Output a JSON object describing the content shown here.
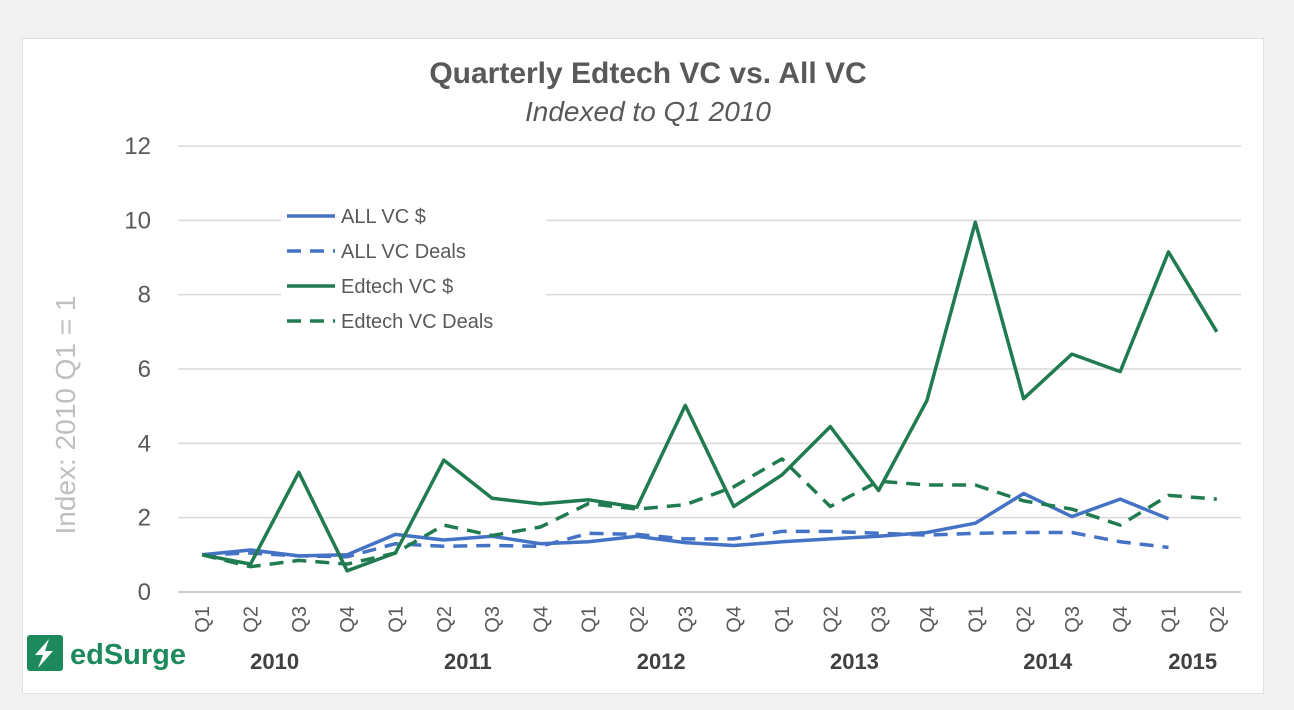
{
  "chart_data": {
    "type": "line",
    "title": "Quarterly Edtech VC vs. All VC",
    "subtitle": "Indexed to Q1 2010",
    "ylabel": "Index: 2010 Q1 = 1",
    "xlabel": "",
    "ylim": [
      0,
      12
    ],
    "yticks": [
      0,
      2,
      4,
      6,
      8,
      10,
      12
    ],
    "grid": true,
    "legend_position": "top-left",
    "categories": [
      "Q1",
      "Q2",
      "Q3",
      "Q4",
      "Q1",
      "Q2",
      "Q3",
      "Q4",
      "Q1",
      "Q2",
      "Q3",
      "Q4",
      "Q1",
      "Q2",
      "Q3",
      "Q4",
      "Q1",
      "Q2",
      "Q3",
      "Q4",
      "Q1",
      "Q2"
    ],
    "years": [
      {
        "label": "2010",
        "quarters": 4
      },
      {
        "label": "2011",
        "quarters": 4
      },
      {
        "label": "2012",
        "quarters": 4
      },
      {
        "label": "2013",
        "quarters": 4
      },
      {
        "label": "2014",
        "quarters": 4
      },
      {
        "label": "2015",
        "quarters": 2
      }
    ],
    "series": [
      {
        "name": "ALL VC $",
        "color": "#4472c4",
        "dash": false,
        "values": [
          1.0,
          1.13,
          0.97,
          1.0,
          1.55,
          1.4,
          1.5,
          1.3,
          1.35,
          1.5,
          1.33,
          1.25,
          1.35,
          1.43,
          1.5,
          1.6,
          1.85,
          2.65,
          2.03,
          2.5,
          1.97,
          null
        ]
      },
      {
        "name": "ALL VC Deals",
        "color": "#4472c4",
        "dash": true,
        "values": [
          1.0,
          1.05,
          0.97,
          0.95,
          1.3,
          1.23,
          1.25,
          1.23,
          1.58,
          1.55,
          1.43,
          1.43,
          1.63,
          1.63,
          1.58,
          1.53,
          1.58,
          1.6,
          1.6,
          1.35,
          1.2,
          null
        ]
      },
      {
        "name": "Edtech VC $",
        "color": "#207c50",
        "dash": false,
        "values": [
          1.0,
          0.75,
          3.22,
          0.57,
          1.05,
          3.55,
          2.52,
          2.37,
          2.48,
          2.28,
          5.02,
          2.3,
          3.15,
          4.45,
          2.73,
          5.15,
          9.95,
          5.2,
          6.4,
          5.93,
          9.15,
          7.0
        ]
      },
      {
        "name": "Edtech VC Deals",
        "color": "#207c50",
        "dash": true,
        "values": [
          1.0,
          0.68,
          0.85,
          0.75,
          1.05,
          1.8,
          1.52,
          1.75,
          2.38,
          2.23,
          2.35,
          2.83,
          3.58,
          2.3,
          2.98,
          2.88,
          2.88,
          2.45,
          2.23,
          1.8,
          2.6,
          2.5
        ]
      }
    ]
  },
  "branding": {
    "logo_text": "edSurge",
    "logo_icon": "bolt-icon",
    "logo_color": "#1d8a5e"
  }
}
